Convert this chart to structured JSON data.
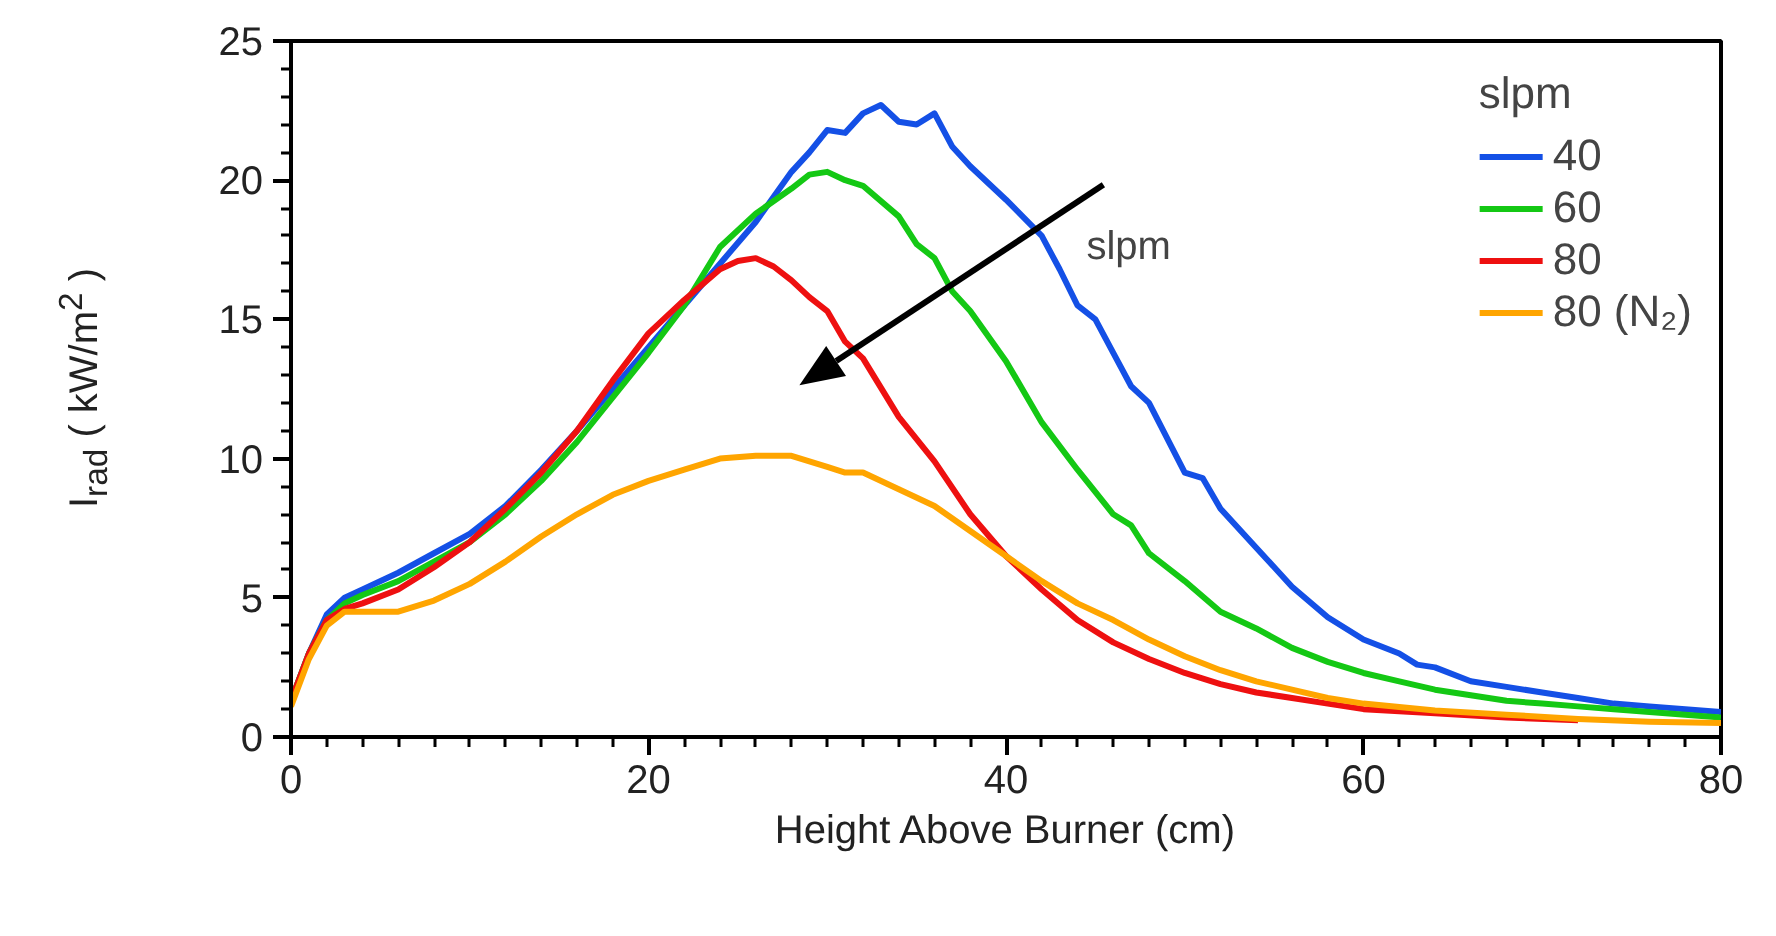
{
  "chart_data": {
    "type": "line",
    "xlabel": "Height Above Burner (cm)",
    "ylabel": "I$_{rad}$ ( kW/m$^{2}$ )",
    "legend_title": "slpm",
    "legend": "top right",
    "grid": false,
    "line_style": "solid",
    "marker": "none",
    "xlim": [
      0,
      80
    ],
    "ylim": [
      0,
      25
    ],
    "xticks": [
      0,
      20,
      40,
      60,
      80
    ],
    "yticks": [
      0,
      5,
      10,
      15,
      20,
      25
    ],
    "annotations": [
      "slpm"
    ],
    "series": [
      {
        "name": "40",
        "color": "#1450e6",
        "x": [
          0,
          1,
          2,
          3,
          4,
          6,
          8,
          10,
          12,
          14,
          16,
          18,
          20,
          22,
          24,
          26,
          28,
          29,
          30,
          31,
          32,
          33,
          34,
          35,
          36,
          37,
          38,
          40,
          42,
          43,
          44,
          45,
          46,
          47,
          48,
          50,
          51,
          52,
          54,
          56,
          58,
          60,
          62,
          63,
          64,
          66,
          68,
          70,
          72,
          74,
          76,
          78,
          80
        ],
        "values": [
          1.3,
          3.0,
          4.4,
          5.0,
          5.3,
          5.9,
          6.6,
          7.3,
          8.3,
          9.6,
          11.0,
          12.5,
          14.0,
          15.5,
          17.0,
          18.5,
          20.3,
          21.0,
          21.8,
          21.7,
          22.4,
          22.7,
          22.1,
          22.0,
          22.4,
          21.2,
          20.5,
          19.3,
          18.0,
          16.8,
          15.5,
          15.0,
          13.8,
          12.6,
          12.0,
          9.5,
          9.3,
          8.2,
          6.8,
          5.4,
          4.3,
          3.5,
          3.0,
          2.6,
          2.5,
          2.0,
          1.8,
          1.6,
          1.4,
          1.2,
          1.1,
          1.0,
          0.9
        ]
      },
      {
        "name": "60",
        "color": "#14c814",
        "x": [
          0,
          1,
          2,
          3,
          4,
          6,
          8,
          10,
          12,
          14,
          16,
          18,
          20,
          22,
          24,
          26,
          28,
          29,
          30,
          31,
          32,
          34,
          35,
          36,
          37,
          38,
          40,
          42,
          44,
          46,
          47,
          48,
          50,
          52,
          54,
          56,
          58,
          60,
          62,
          64,
          66,
          68,
          70,
          72,
          74,
          76,
          78,
          80
        ],
        "values": [
          1.3,
          3.0,
          4.2,
          4.8,
          5.1,
          5.6,
          6.3,
          7.0,
          8.0,
          9.2,
          10.6,
          12.2,
          13.8,
          15.5,
          17.6,
          18.8,
          19.7,
          20.2,
          20.3,
          20.0,
          19.8,
          18.7,
          17.7,
          17.2,
          16.0,
          15.3,
          13.5,
          11.3,
          9.6,
          8.0,
          7.6,
          6.6,
          5.6,
          4.5,
          3.9,
          3.2,
          2.7,
          2.3,
          2.0,
          1.7,
          1.5,
          1.3,
          1.2,
          1.1,
          1.0,
          0.9,
          0.8,
          0.7
        ]
      },
      {
        "name": "80",
        "color": "#ee1010",
        "x": [
          0,
          1,
          2,
          3,
          4,
          6,
          8,
          10,
          12,
          14,
          16,
          18,
          20,
          22,
          24,
          25,
          26,
          27,
          28,
          29,
          30,
          31,
          32,
          34,
          36,
          38,
          40,
          42,
          44,
          46,
          48,
          50,
          52,
          54,
          56,
          58,
          60,
          64,
          68,
          72
        ],
        "values": [
          1.3,
          3.0,
          4.2,
          4.6,
          4.8,
          5.3,
          6.1,
          7.0,
          8.2,
          9.5,
          11.0,
          12.8,
          14.5,
          15.7,
          16.8,
          17.1,
          17.2,
          16.9,
          16.4,
          15.8,
          15.3,
          14.2,
          13.6,
          11.5,
          9.9,
          8.0,
          6.5,
          5.3,
          4.2,
          3.4,
          2.8,
          2.3,
          1.9,
          1.6,
          1.4,
          1.2,
          1.0,
          0.85,
          0.7,
          0.6
        ]
      },
      {
        "name": "80 (N₂)",
        "color": "#ffa500",
        "x": [
          0,
          1,
          2,
          3,
          4,
          6,
          8,
          10,
          12,
          14,
          16,
          18,
          20,
          22,
          24,
          26,
          28,
          30,
          31,
          32,
          34,
          36,
          38,
          40,
          42,
          44,
          46,
          48,
          50,
          52,
          54,
          56,
          58,
          60,
          64,
          68,
          72,
          76,
          80
        ],
        "values": [
          1.1,
          2.8,
          4.0,
          4.5,
          4.5,
          4.5,
          4.9,
          5.5,
          6.3,
          7.2,
          8.0,
          8.7,
          9.2,
          9.6,
          10.0,
          10.1,
          10.1,
          9.7,
          9.5,
          9.5,
          8.9,
          8.3,
          7.4,
          6.5,
          5.6,
          4.8,
          4.2,
          3.5,
          2.9,
          2.4,
          2.0,
          1.7,
          1.4,
          1.2,
          0.95,
          0.8,
          0.65,
          0.55,
          0.5
        ]
      }
    ]
  }
}
